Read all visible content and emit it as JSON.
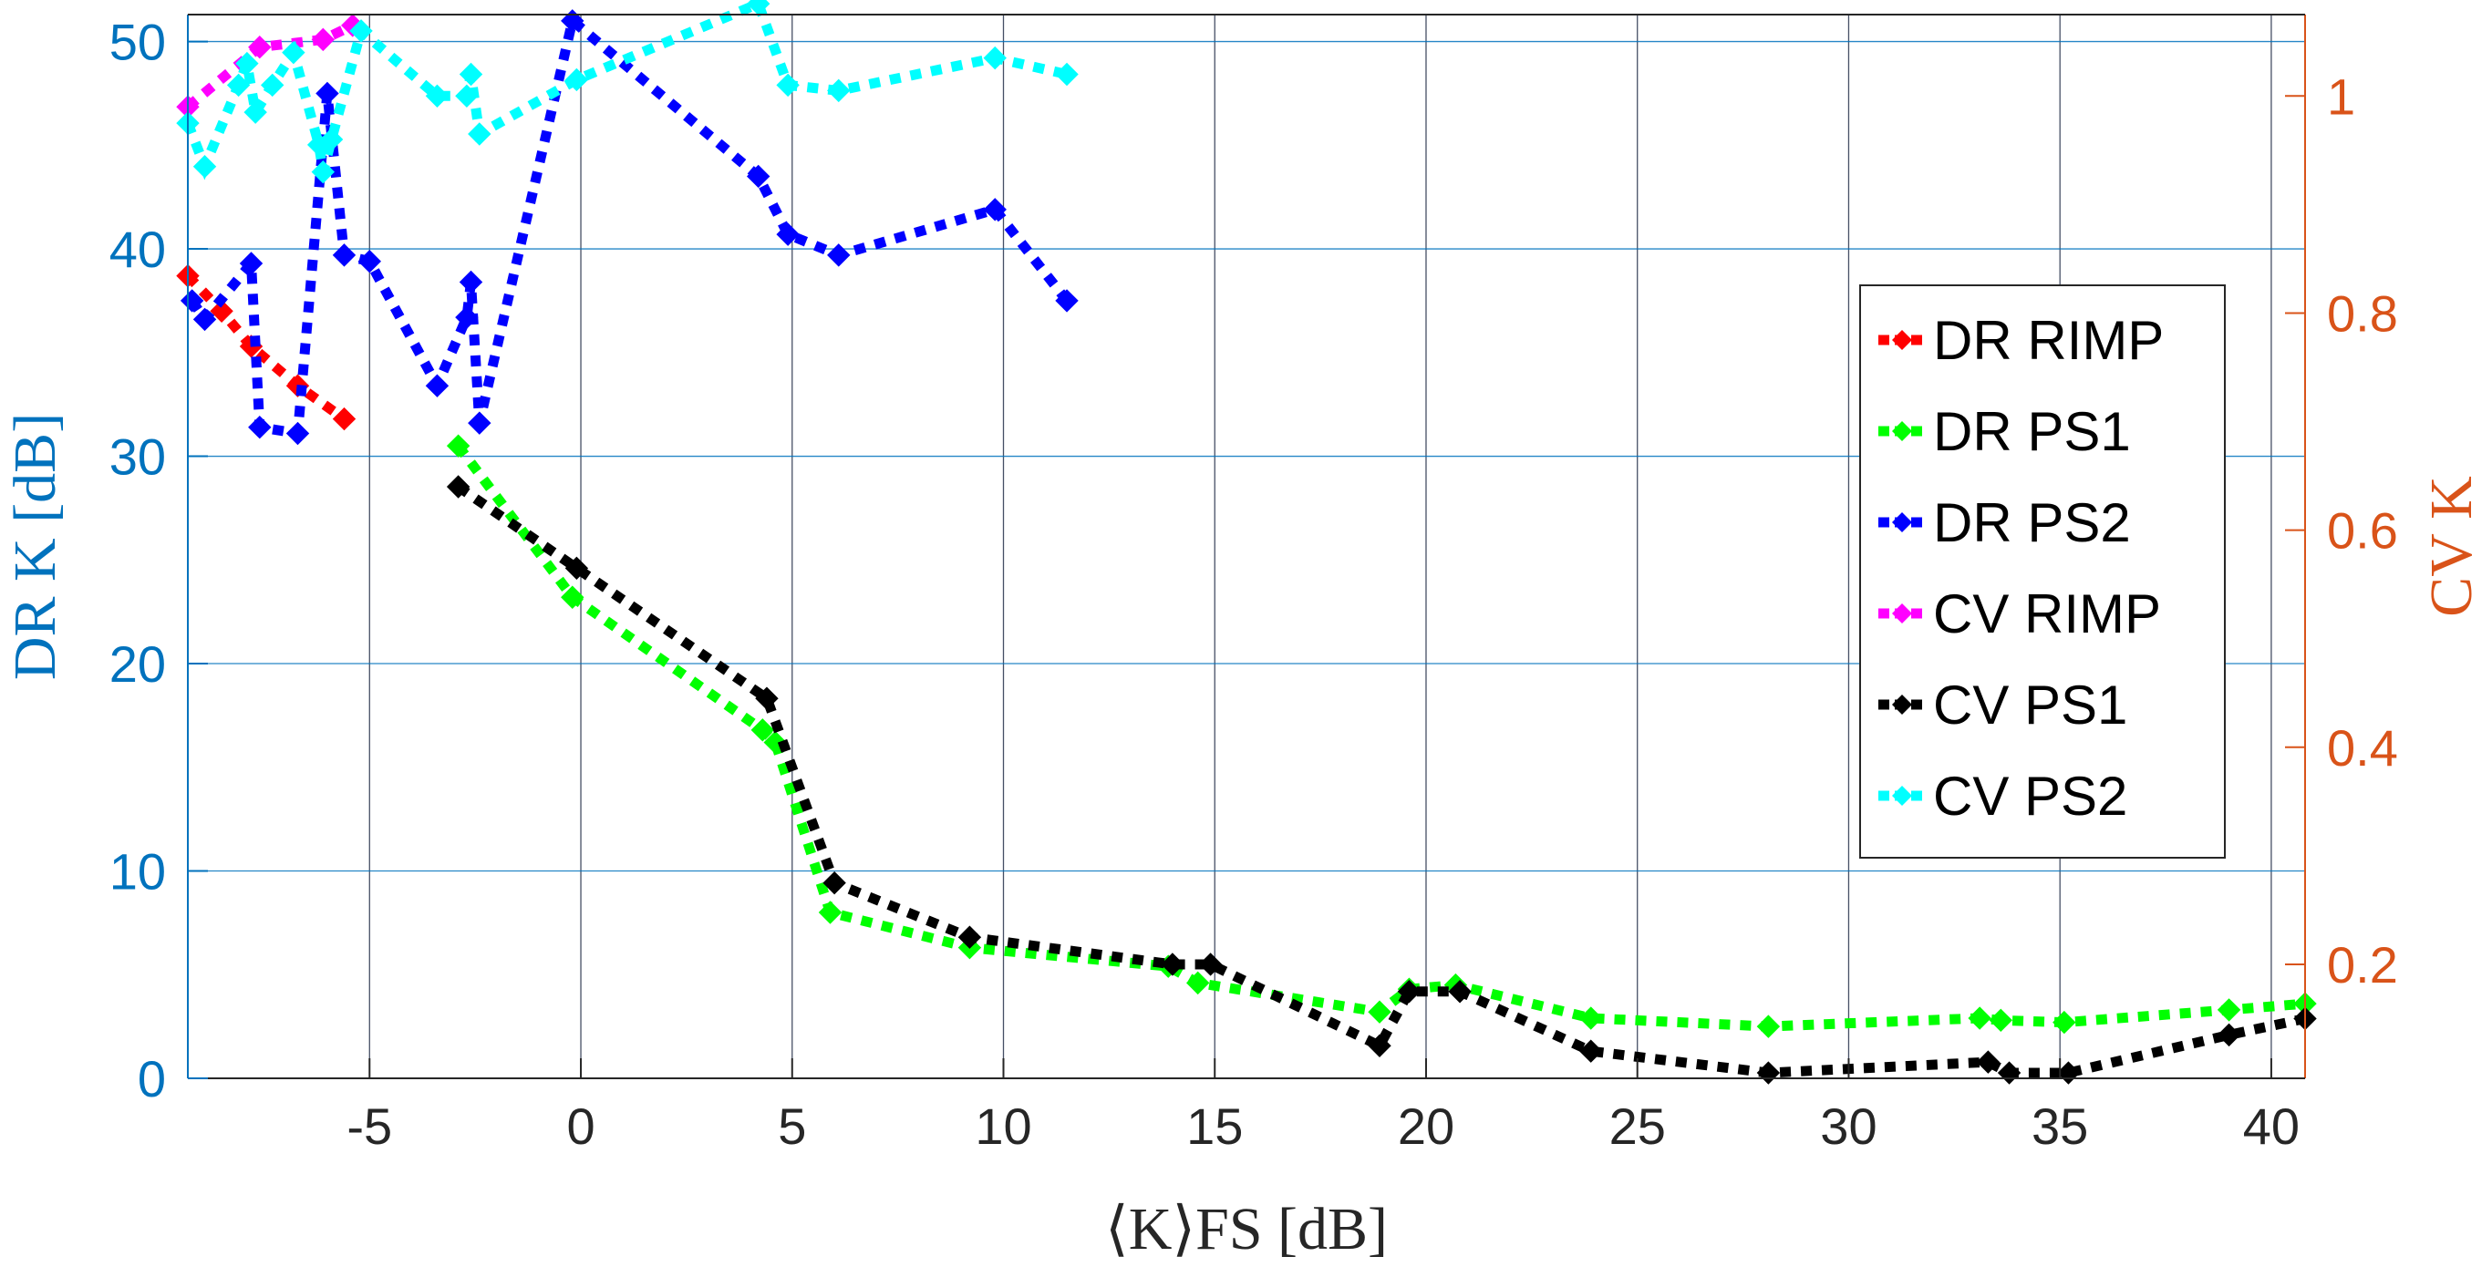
{
  "chart_data": {
    "type": "line",
    "xlabel": "⟨K⟩FS [dB]",
    "ylabel_left": "DR K [dB]",
    "ylabel_right": "CV K",
    "xlim": [
      -9.3,
      40.8
    ],
    "ylim_left": [
      0,
      51.3
    ],
    "ylim_right": [
      0.095,
      1.075
    ],
    "grid": true,
    "legend_placement": "right",
    "x_ticks": [
      -5,
      0,
      5,
      10,
      15,
      20,
      25,
      30,
      35,
      40
    ],
    "x_tick_labels": [
      "-5",
      "0",
      "5",
      "10",
      "15",
      "20",
      "25",
      "30",
      "35",
      "40"
    ],
    "y_left_ticks": [
      0,
      10,
      20,
      30,
      40,
      50
    ],
    "y_left_tick_labels": [
      "0",
      "10",
      "20",
      "30",
      "40",
      "50"
    ],
    "y_right_ticks": [
      0.2,
      0.4,
      0.6,
      0.8,
      1.0
    ],
    "y_right_tick_labels": [
      "0.2",
      "0.4",
      "0.6",
      "0.8",
      "1"
    ],
    "colors": {
      "left_axis": "#0072BD",
      "right_axis": "#D95319",
      "grid_major": "#26304a",
      "grid_minor": "#0072BD"
    },
    "series": [
      {
        "name": "DR RIMP",
        "axis": "left",
        "color": "#FF0000",
        "x": [
          -9.3,
          -8.5,
          -7.8,
          -6.7,
          -5.6
        ],
        "y": [
          38.7,
          37.0,
          35.3,
          33.4,
          31.8
        ]
      },
      {
        "name": "DR PS1",
        "axis": "left",
        "color": "#00FF00",
        "x": [
          -2.9,
          -0.2,
          4.3,
          4.6,
          5.9,
          9.2,
          13.9,
          14.6,
          18.9,
          19.6,
          20.7,
          23.9,
          28.1,
          33.1,
          33.6,
          35.1,
          39.0,
          40.8
        ],
        "y": [
          30.5,
          23.2,
          16.8,
          16.2,
          8.0,
          6.3,
          5.4,
          4.6,
          3.2,
          4.3,
          4.5,
          2.9,
          2.5,
          2.9,
          2.8,
          2.7,
          3.3,
          3.6
        ]
      },
      {
        "name": "DR PS2",
        "axis": "left",
        "color": "#0000FF",
        "x": [
          -9.2,
          -8.9,
          -7.8,
          -7.6,
          -6.7,
          -6.0,
          -5.6,
          -5.0,
          -3.4,
          -2.7,
          -2.6,
          -2.4,
          -0.2,
          4.2,
          4.9,
          6.1,
          9.8,
          11.5
        ],
        "y": [
          37.5,
          36.6,
          39.3,
          31.4,
          31.1,
          47.5,
          39.7,
          39.4,
          33.4,
          36.7,
          38.4,
          31.6,
          51.0,
          43.5,
          40.7,
          39.7,
          41.9,
          37.5
        ]
      },
      {
        "name": "CV RIMP",
        "axis": "right",
        "color": "#FF00FF",
        "x": [
          -9.3,
          -7.6,
          -6.1,
          -5.4
        ],
        "y": [
          0.99,
          1.045,
          1.052,
          1.065
        ]
      },
      {
        "name": "CV PS1",
        "axis": "right",
        "color": "#000000",
        "x": [
          -2.9,
          -0.1,
          4.4,
          6.0,
          9.2,
          14.0,
          14.9,
          18.9,
          19.6,
          20.8,
          23.9,
          28.1,
          33.3,
          33.8,
          35.2,
          39.0,
          40.8
        ],
        "y": [
          0.64,
          0.565,
          0.445,
          0.275,
          0.225,
          0.2,
          0.2,
          0.125,
          0.175,
          0.175,
          0.12,
          0.1,
          0.11,
          0.1,
          0.1,
          0.135,
          0.15
        ]
      },
      {
        "name": "CV PS2",
        "axis": "right",
        "color": "#00FFFF",
        "x": [
          -9.3,
          -8.9,
          -8.1,
          -7.9,
          -7.7,
          -7.3,
          -6.8,
          -6.2,
          -6.1,
          -5.9,
          -5.2,
          -3.4,
          -2.7,
          -2.6,
          -2.4,
          -0.1,
          4.2,
          4.9,
          6.1,
          9.8,
          11.5
        ],
        "y": [
          0.975,
          0.935,
          1.01,
          1.03,
          0.985,
          1.01,
          1.04,
          0.955,
          0.93,
          0.96,
          1.06,
          1.0,
          1.0,
          1.02,
          0.965,
          1.015,
          1.085,
          1.01,
          1.005,
          1.035,
          1.02
        ]
      }
    ]
  }
}
